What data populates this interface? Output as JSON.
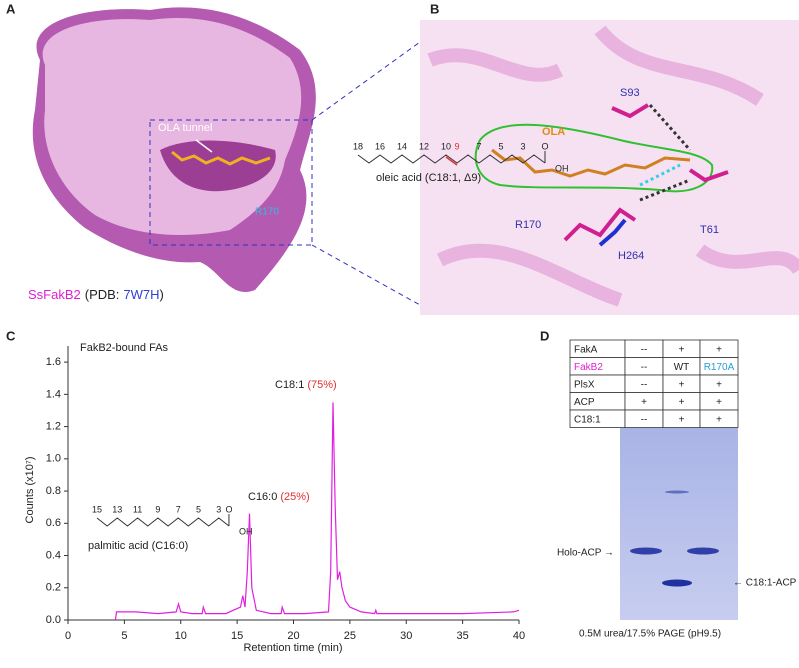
{
  "panel_a": {
    "letter": "A",
    "tunnel_label": "OLA tunnel",
    "residue": "R170",
    "protein": "SsFakB2",
    "pdb_prefix": "(PDB:",
    "pdb_id": "7W7H",
    "pdb_suffix": ")"
  },
  "panel_b": {
    "letter": "B",
    "residues": [
      "S93",
      "R170",
      "H264",
      "T61"
    ],
    "ligand": "OLA"
  },
  "chart_data": {
    "type": "line",
    "letter": "C",
    "title": "FakB2-bound FAs",
    "x_label": "Retention time (min)",
    "y_label": "Counts (x10⁷)",
    "xlim": [
      0,
      40
    ],
    "xticks": [
      0,
      5,
      10,
      15,
      20,
      25,
      30,
      35,
      40
    ],
    "ylim": [
      0,
      1.7
    ],
    "yticks": [
      {
        "value": 0,
        "label": "0.0"
      },
      0.2,
      0.4,
      0.6,
      0.8,
      {
        "value": 1,
        "label": "1.0"
      },
      1.2,
      1.4,
      1.6
    ],
    "series": [
      {
        "color": "#e020e0",
        "x": [
          4.2,
          4.3,
          6,
          8,
          9.6,
          9.8,
          10.0,
          11,
          11.9,
          12.0,
          12.2,
          14,
          15.3,
          15.5,
          15.7,
          15.9,
          16.1,
          16.3,
          16.7,
          18,
          18.9,
          19.0,
          19.2,
          21,
          23.1,
          23.3,
          23.5,
          23.7,
          23.9,
          24.1,
          24.3,
          24.6,
          25,
          26,
          27.2,
          27.3,
          27.4,
          30,
          35,
          39.5,
          40
        ],
        "values": [
          0,
          0.05,
          0.05,
          0.04,
          0.05,
          0.1,
          0.05,
          0.04,
          0.04,
          0.08,
          0.04,
          0.04,
          0.08,
          0.15,
          0.08,
          0.3,
          0.66,
          0.2,
          0.06,
          0.04,
          0.04,
          0.08,
          0.04,
          0.04,
          0.05,
          0.3,
          1.35,
          0.7,
          0.25,
          0.3,
          0.2,
          0.12,
          0.08,
          0.05,
          0.04,
          0.06,
          0.04,
          0.04,
          0.04,
          0.05,
          0.06
        ]
      }
    ],
    "annotations": [
      {
        "text": "C18:1",
        "percent": "(75%)"
      },
      {
        "text": "C16:0",
        "percent": "(25%)"
      }
    ],
    "oleic": {
      "carbons": [
        18,
        16,
        14,
        12,
        10,
        9,
        7,
        5,
        3
      ],
      "oxygen": "O",
      "hydroxyl": "OH",
      "name": "oleic acid (C18:1, Δ9)"
    },
    "palmitic": {
      "carbons": [
        15,
        13,
        11,
        9,
        7,
        5,
        3
      ],
      "oxygen": "O",
      "hydroxyl": "OH",
      "name": "palmitic acid (C16:0)"
    }
  },
  "panel_d": {
    "letter": "D",
    "table": {
      "rows": [
        [
          "FakA",
          "--",
          "+",
          "+"
        ],
        [
          "FakB2",
          "--",
          "WT",
          "R170A"
        ],
        [
          "PlsX",
          "--",
          "+",
          "+"
        ],
        [
          "ACP",
          "+",
          "+",
          "+"
        ],
        [
          "C18:1",
          "--",
          "+",
          "+"
        ]
      ]
    },
    "holo_label": "Holo-ACP →",
    "acyl_label": "← C18:1-ACP",
    "caption": "0.5M urea/17.5% PAGE (pH9.5)"
  }
}
